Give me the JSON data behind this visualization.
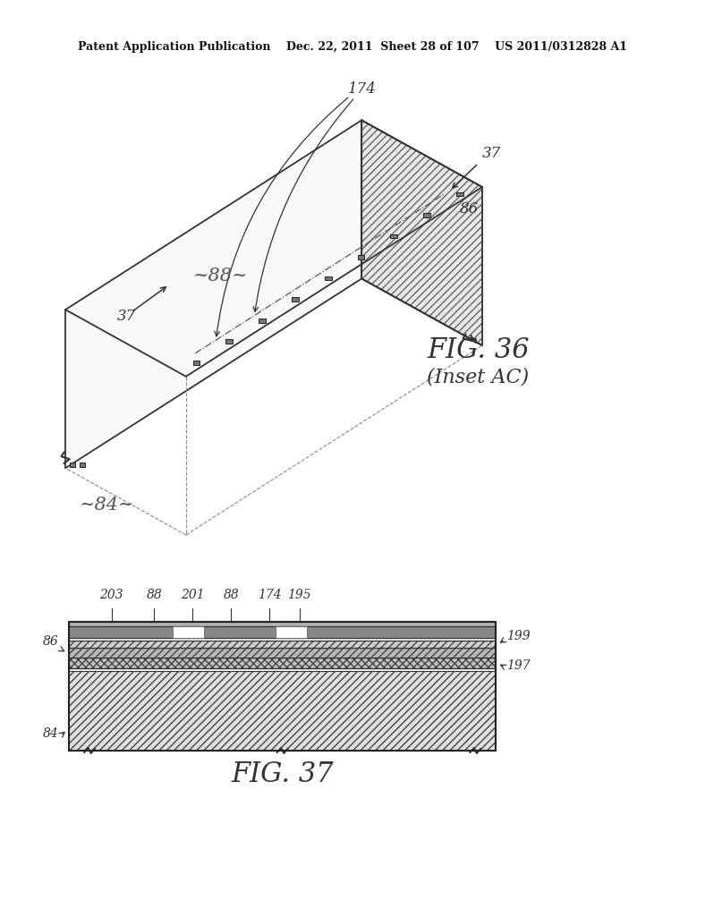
{
  "bg_color": "#ffffff",
  "header_text": "Patent Application Publication    Dec. 22, 2011  Sheet 28 of 107    US 2011/0312828 A1",
  "fig36_caption": "FIG. 36",
  "fig36_subcaption": "(Inset AC)",
  "fig37_caption": "FIG. 37",
  "line_color": "#333333",
  "hatch_color": "#555555",
  "label_color": "#333333",
  "box_top_face_color": "#f0f0f0",
  "box_front_face_color": "#f8f8f8",
  "box_right_hatch_color": "#e0e0e0"
}
